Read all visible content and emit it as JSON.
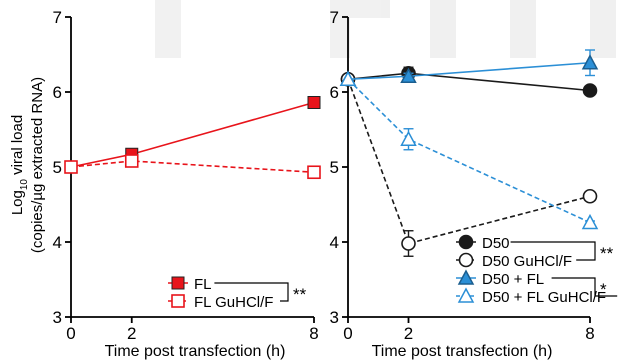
{
  "chart_data": [
    {
      "type": "line",
      "ylabel_line1": "viral load",
      "ylabel_log_base": "10",
      "ylabel_log_prefix": "Log",
      "ylabel_line2": "(copies/µg extracted RNA)",
      "xlabel": "Time post transfection (h)",
      "xlim": [
        0,
        8
      ],
      "ylim": [
        3,
        7
      ],
      "xticks": [
        0,
        2,
        8
      ],
      "yticks": [
        3,
        4,
        5,
        6,
        7
      ],
      "grid": false,
      "legend_position": "bottom-right",
      "series": [
        {
          "name": "FL",
          "x": [
            0,
            2,
            8
          ],
          "y": [
            5.0,
            5.17,
            5.86
          ],
          "err": [
            0,
            0.05,
            0.04
          ],
          "color": "#e8141b",
          "marker": "square",
          "filled": true,
          "dash": false
        },
        {
          "name": "FL GuHCl/F",
          "x": [
            0,
            2,
            8
          ],
          "y": [
            5.0,
            5.08,
            4.93
          ],
          "err": [
            0,
            0.04,
            0.02
          ],
          "color": "#e8141b",
          "marker": "square",
          "filled": false,
          "dash": true
        }
      ],
      "annotations": [
        {
          "text": "**",
          "between": [
            "FL",
            "FL GuHCl/F"
          ]
        }
      ]
    },
    {
      "type": "line",
      "xlabel": "Time post transfection (h)",
      "xlim": [
        0,
        8
      ],
      "ylim": [
        3,
        7
      ],
      "xticks": [
        0,
        2,
        8
      ],
      "yticks": [
        3,
        4,
        5,
        6,
        7
      ],
      "grid": false,
      "legend_position": "bottom-right",
      "series": [
        {
          "name": "D50",
          "x": [
            0,
            2,
            8
          ],
          "y": [
            6.17,
            6.25,
            6.02
          ],
          "err": [
            0,
            0.08,
            0.02
          ],
          "color": "#1a1a1a",
          "marker": "circle",
          "filled": true,
          "dash": false
        },
        {
          "name": "D50 GuHCl/F",
          "x": [
            0,
            2,
            8
          ],
          "y": [
            6.17,
            3.98,
            4.61
          ],
          "err": [
            0,
            0.17,
            0.02
          ],
          "color": "#1a1a1a",
          "marker": "circle",
          "filled": false,
          "dash": true
        },
        {
          "name": "D50 + FL",
          "x": [
            0,
            2,
            8
          ],
          "y": [
            6.17,
            6.21,
            6.39
          ],
          "err": [
            0,
            0.04,
            0.17
          ],
          "color": "#2b8fd6",
          "marker": "triangle",
          "filled": true,
          "dash": false
        },
        {
          "name": "D50 + FL GuHCl/F",
          "x": [
            0,
            2,
            8
          ],
          "y": [
            6.17,
            5.37,
            4.26
          ],
          "err": [
            0,
            0.14,
            0.02
          ],
          "color": "#2b8fd6",
          "marker": "triangle",
          "filled": false,
          "dash": true
        }
      ],
      "annotations": [
        {
          "text": "**",
          "between": [
            "D50",
            "D50 GuHCl/F"
          ]
        },
        {
          "text": "*",
          "between": [
            "D50 + FL",
            "D50 + FL GuHCl/F"
          ]
        }
      ]
    }
  ]
}
